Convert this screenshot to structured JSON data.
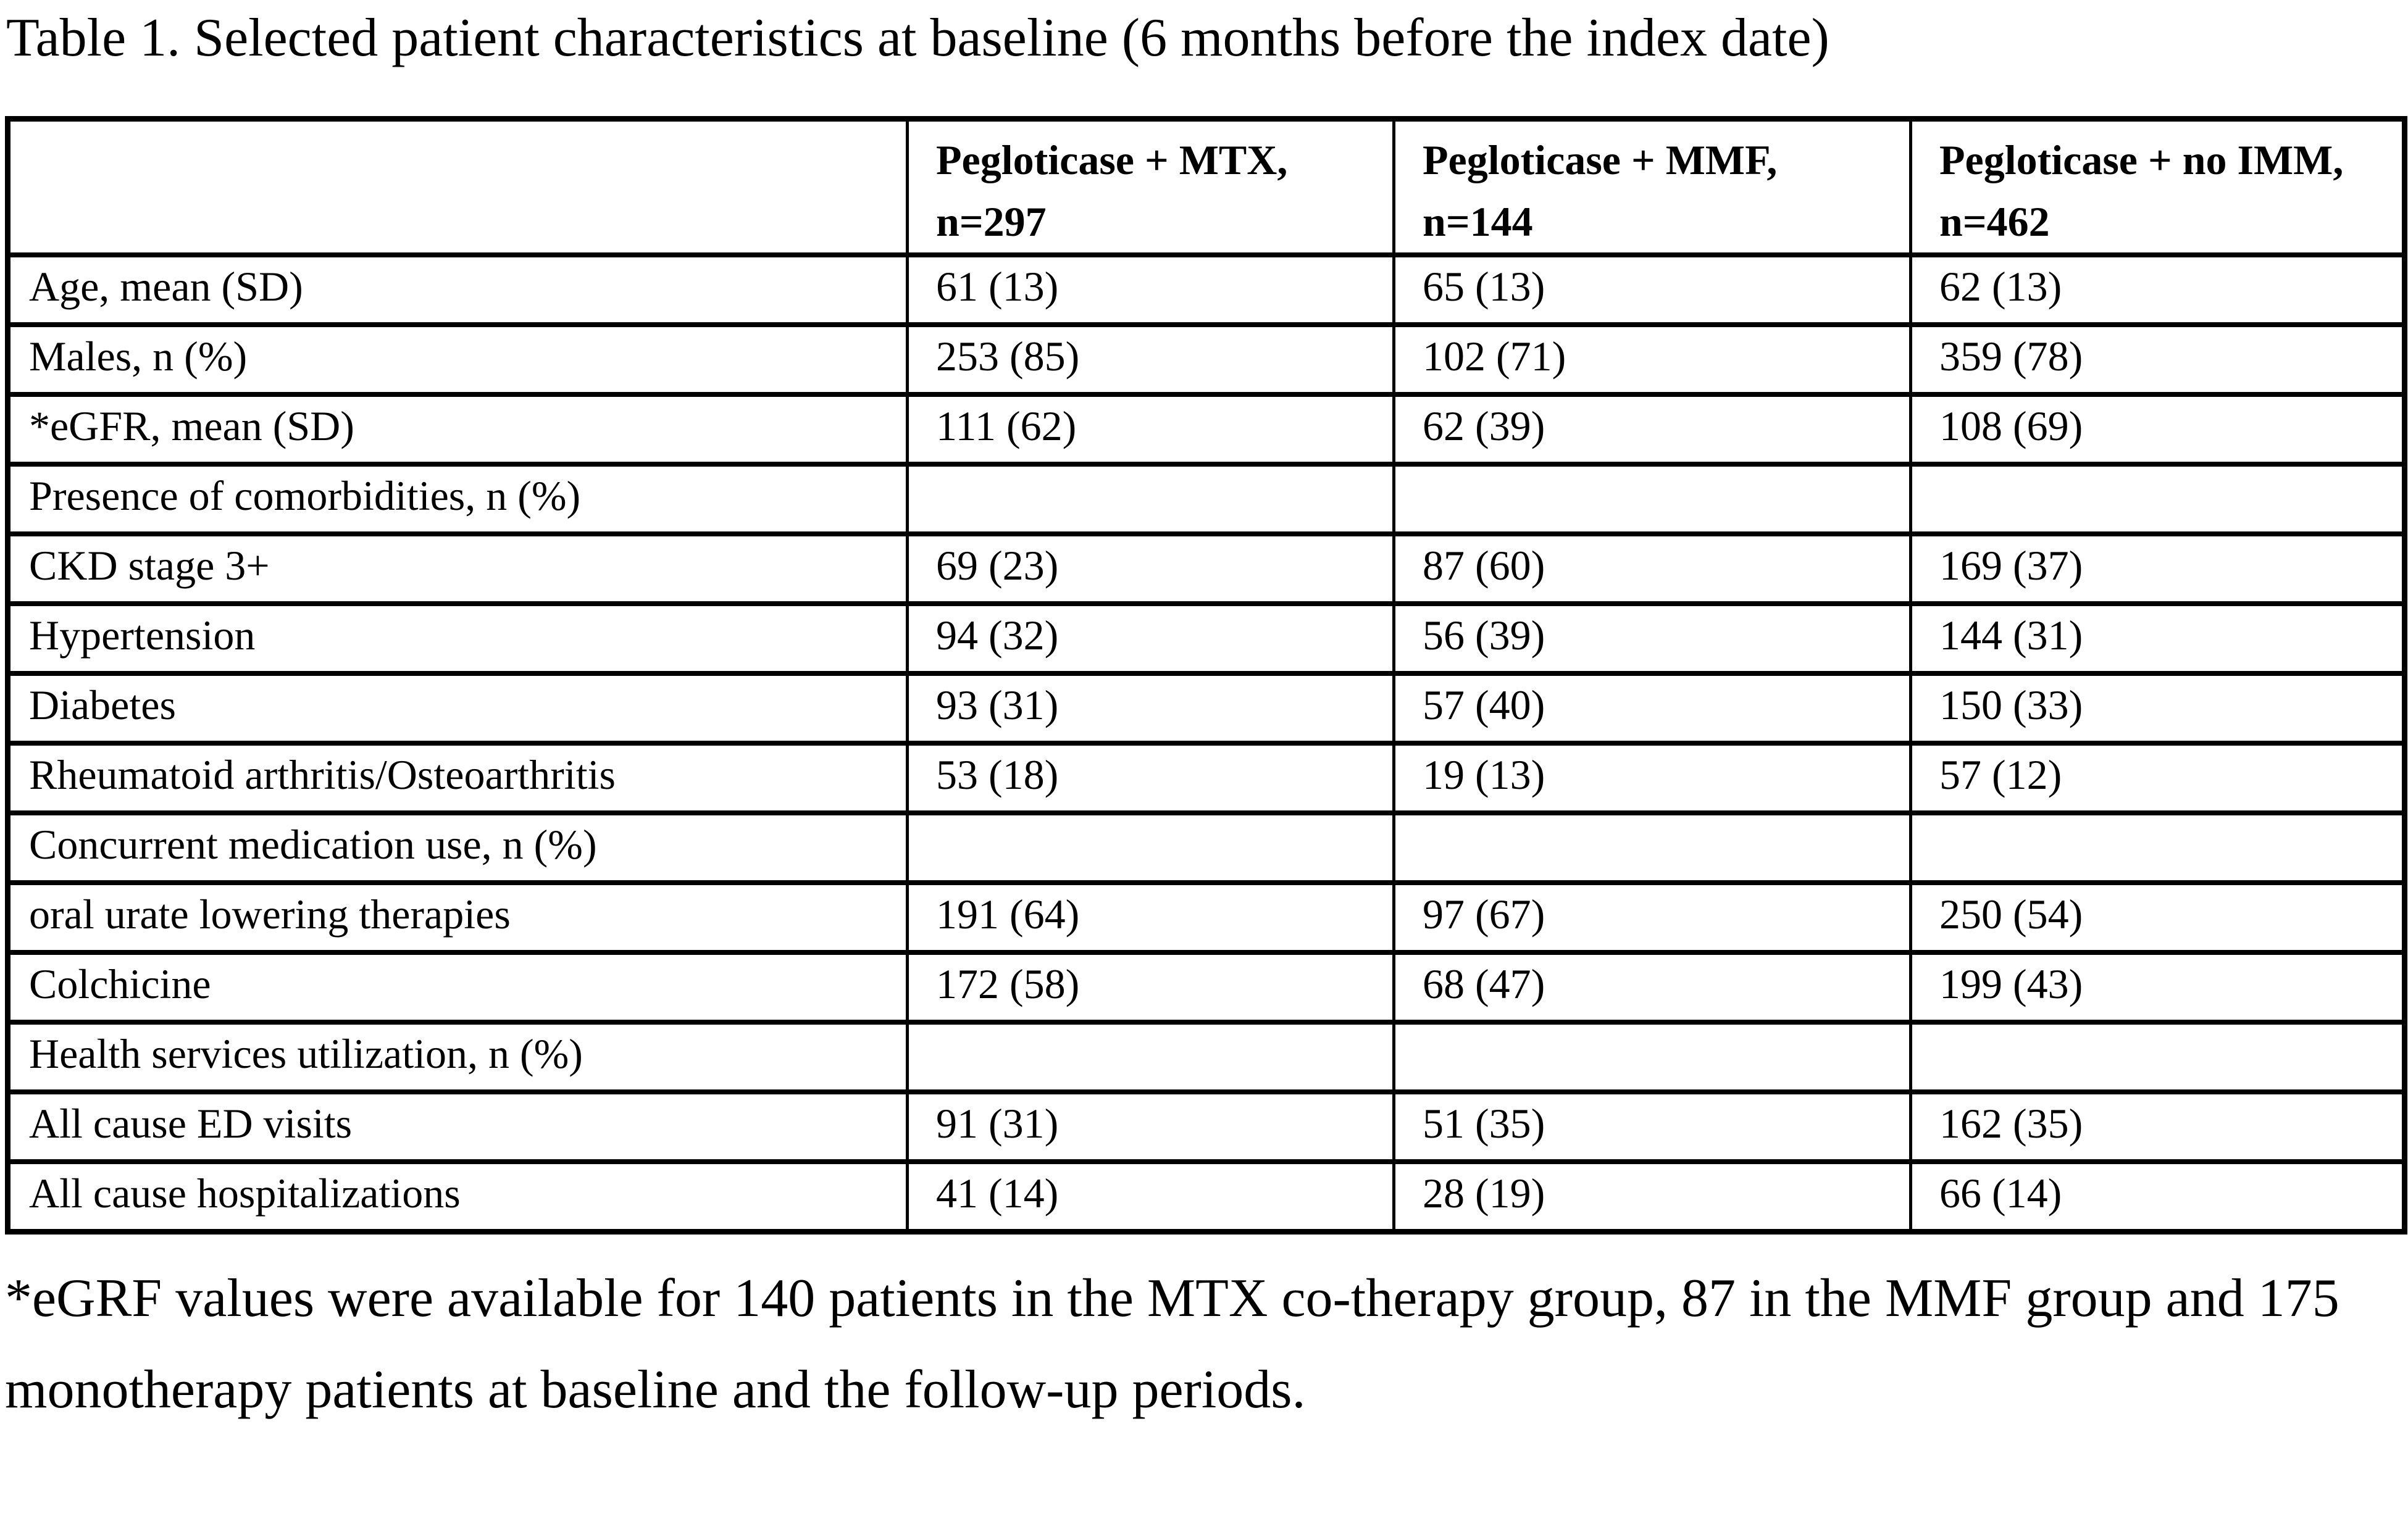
{
  "title": "Table 1. Selected patient characteristics at baseline (6 months before the index date)",
  "table": {
    "header": {
      "row_label_header": "",
      "columns": [
        {
          "label": "Pegloticase + MTX, n=297"
        },
        {
          "label": "Pegloticase + MMF, n=144"
        },
        {
          "label": "Pegloticase + no IMM, n=462"
        }
      ]
    },
    "rows": [
      {
        "label": "Age, mean (SD)",
        "values": [
          "61 (13)",
          "65 (13)",
          "62 (13)"
        ]
      },
      {
        "label": "Males, n (%)",
        "values": [
          "253 (85)",
          "102 (71)",
          "359 (78)"
        ]
      },
      {
        "label": "*eGFR, mean (SD)",
        "values": [
          "111 (62)",
          "62 (39)",
          "108 (69)"
        ]
      },
      {
        "label": "Presence of comorbidities, n (%)",
        "values": [
          "",
          "",
          ""
        ]
      },
      {
        "label": "CKD stage 3+",
        "values": [
          "69 (23)",
          "87 (60)",
          "169 (37)"
        ]
      },
      {
        "label": "Hypertension",
        "values": [
          "94 (32)",
          "56 (39)",
          "144 (31)"
        ]
      },
      {
        "label": "Diabetes",
        "values": [
          "93 (31)",
          "57 (40)",
          "150 (33)"
        ]
      },
      {
        "label": "Rheumatoid arthritis/Osteoarthritis",
        "values": [
          "53 (18)",
          "19 (13)",
          "57 (12)"
        ]
      },
      {
        "label": "Concurrent medication use, n (%)",
        "values": [
          "",
          "",
          ""
        ]
      },
      {
        "label": "oral urate lowering therapies",
        "values": [
          "191 (64)",
          "97 (67)",
          "250 (54)"
        ]
      },
      {
        "label": "Colchicine",
        "values": [
          "172 (58)",
          "68 (47)",
          "199 (43)"
        ]
      },
      {
        "label": "Health services utilization, n (%)",
        "values": [
          "",
          "",
          ""
        ]
      },
      {
        "label": "All cause ED visits",
        "values": [
          "91 (31)",
          "51 (35)",
          "162 (35)"
        ]
      },
      {
        "label": "All cause hospitalizations",
        "values": [
          "41 (14)",
          "28 (19)",
          "66 (14)"
        ]
      }
    ]
  },
  "footnote": "*eGRF values were available for 140 patients in the MTX co-therapy group, 87 in the MMF group and 175 monotherapy patients at baseline and the follow-up periods.",
  "colors": {
    "text": "#000000",
    "background": "#ffffff",
    "border": "#000000"
  }
}
